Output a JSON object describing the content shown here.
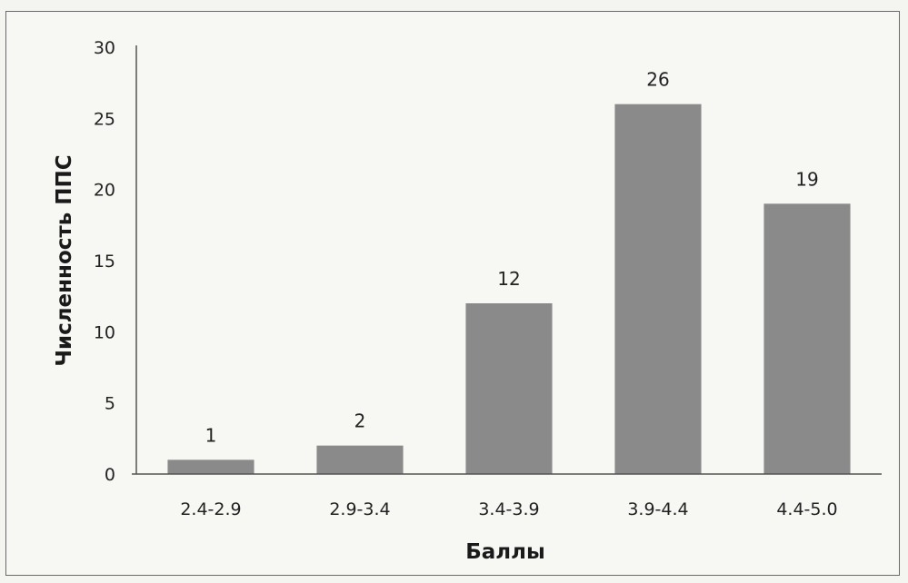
{
  "chart_data": {
    "type": "bar",
    "title": "",
    "xlabel": "Баллы",
    "ylabel": "Численность ППС",
    "categories": [
      "2.4-2.9",
      "2.9-3.4",
      "3.4-3.9",
      "3.9-4.4",
      "4.4-5.0"
    ],
    "values": [
      1,
      2,
      12,
      26,
      19
    ],
    "data_labels": [
      "1",
      "2",
      "12",
      "26",
      "19"
    ],
    "ylim": [
      0,
      30
    ],
    "yticks": [
      0,
      5,
      10,
      15,
      20,
      25,
      30
    ],
    "grid": false,
    "legend": "none",
    "bar_color": "#8a8a8a",
    "axis_color": "#555555"
  }
}
